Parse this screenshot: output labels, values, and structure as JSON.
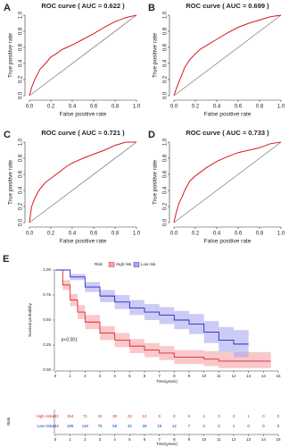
{
  "chart_data": [
    {
      "type": "roc",
      "panel": "A",
      "title": "ROC curve ( AUC = 0.622 )",
      "xlabel": "False positive rate",
      "ylabel": "True positive rate",
      "color": "#d7191c",
      "x": [
        0,
        0.02,
        0.05,
        0.08,
        0.1,
        0.15,
        0.2,
        0.25,
        0.3,
        0.35,
        0.4,
        0.5,
        0.6,
        0.7,
        0.8,
        0.9,
        1
      ],
      "values": [
        0,
        0.1,
        0.2,
        0.28,
        0.33,
        0.4,
        0.48,
        0.52,
        0.57,
        0.6,
        0.63,
        0.7,
        0.77,
        0.85,
        0.92,
        0.97,
        1
      ],
      "xlim": [
        0,
        1
      ],
      "ylim": [
        0,
        1
      ],
      "xticks": [
        {
          "value": 0,
          "label": "0.0"
        },
        {
          "value": 0.2,
          "label": "0.2"
        },
        {
          "value": 0.4,
          "label": "0.4"
        },
        {
          "value": 0.6,
          "label": "0.6"
        },
        {
          "value": 0.8,
          "label": "0.8"
        },
        {
          "value": 1,
          "label": "1.0"
        }
      ],
      "yticks": [
        {
          "value": 0,
          "label": "0.0"
        },
        {
          "value": 0.2,
          "label": "0.2"
        },
        {
          "value": 0.4,
          "label": "0.4"
        },
        {
          "value": 0.6,
          "label": "0.6"
        },
        {
          "value": 0.8,
          "label": "0.8"
        },
        {
          "value": 1,
          "label": "1.0"
        }
      ]
    },
    {
      "type": "roc",
      "panel": "B",
      "title": "ROC curve ( AUC = 0.699 )",
      "xlabel": "False positive rate",
      "ylabel": "True positive rate",
      "color": "#d7191c",
      "x": [
        0,
        0.02,
        0.05,
        0.08,
        0.1,
        0.15,
        0.2,
        0.25,
        0.3,
        0.35,
        0.4,
        0.5,
        0.6,
        0.7,
        0.8,
        0.9,
        1
      ],
      "values": [
        0,
        0.08,
        0.18,
        0.28,
        0.35,
        0.45,
        0.52,
        0.58,
        0.62,
        0.66,
        0.7,
        0.78,
        0.85,
        0.9,
        0.94,
        0.98,
        1
      ],
      "xlim": [
        0,
        1
      ],
      "ylim": [
        0,
        1
      ],
      "xticks": [
        {
          "value": 0,
          "label": "0.0"
        },
        {
          "value": 0.2,
          "label": "0.2"
        },
        {
          "value": 0.4,
          "label": "0.4"
        },
        {
          "value": 0.6,
          "label": "0.6"
        },
        {
          "value": 0.8,
          "label": "0.8"
        },
        {
          "value": 1,
          "label": "1.0"
        }
      ],
      "yticks": [
        {
          "value": 0,
          "label": "0.0"
        },
        {
          "value": 0.2,
          "label": "0.2"
        },
        {
          "value": 0.4,
          "label": "0.4"
        },
        {
          "value": 0.6,
          "label": "0.6"
        },
        {
          "value": 0.8,
          "label": "0.8"
        },
        {
          "value": 1,
          "label": "1.0"
        }
      ]
    },
    {
      "type": "roc",
      "panel": "C",
      "title": "ROC curve ( AUC = 0.721 )",
      "xlabel": "False positive rate",
      "ylabel": "True positive rate",
      "color": "#d7191c",
      "x": [
        0,
        0.02,
        0.05,
        0.08,
        0.1,
        0.15,
        0.2,
        0.25,
        0.3,
        0.35,
        0.4,
        0.5,
        0.6,
        0.7,
        0.8,
        0.9,
        1
      ],
      "values": [
        0,
        0.2,
        0.3,
        0.38,
        0.42,
        0.5,
        0.55,
        0.6,
        0.65,
        0.7,
        0.74,
        0.8,
        0.85,
        0.9,
        0.96,
        1,
        1
      ],
      "xlim": [
        0,
        1
      ],
      "ylim": [
        0,
        1
      ],
      "xticks": [
        {
          "value": 0,
          "label": "0.0"
        },
        {
          "value": 0.2,
          "label": "0.2"
        },
        {
          "value": 0.4,
          "label": "0.4"
        },
        {
          "value": 0.6,
          "label": "0.6"
        },
        {
          "value": 0.8,
          "label": "0.8"
        },
        {
          "value": 1,
          "label": "1.0"
        }
      ],
      "yticks": [
        {
          "value": 0,
          "label": "0.0"
        },
        {
          "value": 0.2,
          "label": "0.2"
        },
        {
          "value": 0.4,
          "label": "0.4"
        },
        {
          "value": 0.6,
          "label": "0.6"
        },
        {
          "value": 0.8,
          "label": "0.8"
        },
        {
          "value": 1,
          "label": "1.0"
        }
      ]
    },
    {
      "type": "roc",
      "panel": "D",
      "title": "ROC curve ( AUC = 0.733 )",
      "xlabel": "False positive rate",
      "ylabel": "True positive rate",
      "color": "#d7191c",
      "x": [
        0,
        0.02,
        0.05,
        0.08,
        0.1,
        0.15,
        0.2,
        0.25,
        0.3,
        0.35,
        0.4,
        0.5,
        0.6,
        0.7,
        0.8,
        0.9,
        1
      ],
      "values": [
        0,
        0.12,
        0.25,
        0.33,
        0.4,
        0.52,
        0.58,
        0.63,
        0.68,
        0.72,
        0.76,
        0.82,
        0.87,
        0.9,
        0.93,
        0.98,
        1
      ],
      "xlim": [
        0,
        1
      ],
      "ylim": [
        0,
        1
      ],
      "xticks": [
        {
          "value": 0,
          "label": "0.0"
        },
        {
          "value": 0.2,
          "label": "0.2"
        },
        {
          "value": 0.4,
          "label": "0.4"
        },
        {
          "value": 0.6,
          "label": "0.6"
        },
        {
          "value": 0.8,
          "label": "0.8"
        },
        {
          "value": 1,
          "label": "1.0"
        }
      ],
      "yticks": [
        {
          "value": 0,
          "label": "0.0"
        },
        {
          "value": 0.2,
          "label": "0.2"
        },
        {
          "value": 0.4,
          "label": "0.4"
        },
        {
          "value": 0.6,
          "label": "0.6"
        },
        {
          "value": 0.8,
          "label": "0.8"
        },
        {
          "value": 1,
          "label": "1.0"
        }
      ]
    },
    {
      "type": "km",
      "panel": "E",
      "legend_title": "Risk",
      "ylabel": "Survival probability",
      "xlabel": "Time(years)",
      "annotation": "p<0.001",
      "xlim": [
        0,
        15
      ],
      "ylim": [
        0,
        1
      ],
      "xticks": [
        0,
        1,
        2,
        3,
        4,
        5,
        6,
        7,
        8,
        9,
        10,
        11,
        12,
        13,
        14,
        15
      ],
      "yticks": [
        {
          "value": 0,
          "label": "0.00"
        },
        {
          "value": 0.25,
          "label": "0.25"
        },
        {
          "value": 0.5,
          "label": "0.50"
        },
        {
          "value": 0.75,
          "label": "0.75"
        },
        {
          "value": 1,
          "label": "1.00"
        }
      ],
      "series": [
        {
          "name": "High risk",
          "color": "#e4262c",
          "band_color": "#f4a3a6",
          "x": [
            0,
            0.5,
            1,
            1.5,
            2,
            3,
            4,
            5,
            6,
            7,
            8,
            10,
            11,
            14.5
          ],
          "values": [
            1,
            0.85,
            0.7,
            0.58,
            0.48,
            0.37,
            0.3,
            0.24,
            0.2,
            0.17,
            0.13,
            0.11,
            0.09,
            0.09
          ],
          "lower": [
            1,
            0.8,
            0.64,
            0.51,
            0.41,
            0.3,
            0.23,
            0.17,
            0.13,
            0.1,
            0.06,
            0.04,
            0.02,
            0.02
          ],
          "upper": [
            1,
            0.9,
            0.76,
            0.65,
            0.55,
            0.44,
            0.37,
            0.31,
            0.27,
            0.24,
            0.2,
            0.19,
            0.18,
            0.22
          ]
        },
        {
          "name": "Low risk",
          "color": "#2b2bbf",
          "band_color": "#a9a9ee",
          "x": [
            0,
            1,
            2,
            3,
            4,
            5,
            6,
            7,
            8,
            9,
            10,
            11,
            12,
            13
          ],
          "values": [
            1,
            0.93,
            0.83,
            0.74,
            0.68,
            0.62,
            0.58,
            0.55,
            0.5,
            0.46,
            0.38,
            0.3,
            0.26,
            0.26
          ],
          "lower": [
            1,
            0.9,
            0.78,
            0.68,
            0.61,
            0.55,
            0.5,
            0.46,
            0.41,
            0.36,
            0.27,
            0.18,
            0.13,
            0.13
          ],
          "upper": [
            1,
            0.96,
            0.88,
            0.8,
            0.75,
            0.7,
            0.66,
            0.63,
            0.59,
            0.56,
            0.49,
            0.43,
            0.4,
            0.4
          ]
        }
      ]
    },
    {
      "type": "risk-table",
      "ylabel": "Risk",
      "xlabel": "Time(years)",
      "xlim": [
        0,
        15
      ],
      "xticks": [
        0,
        1,
        2,
        3,
        4,
        5,
        6,
        7,
        8,
        9,
        10,
        11,
        12,
        13,
        14,
        15
      ],
      "x": [
        0,
        1,
        2,
        3,
        4,
        5,
        6,
        7,
        8,
        9,
        10,
        11,
        12,
        13,
        14,
        15
      ],
      "series": [
        {
          "name": "High risk",
          "color": "#e4262c",
          "values": [
            233,
            154,
            71,
            42,
            30,
            22,
            12,
            9,
            8,
            6,
            4,
            3,
            2,
            1,
            0,
            0
          ]
        },
        {
          "name": "Low risk",
          "color": "#2b2bbf",
          "values": [
            234,
            185,
            119,
            75,
            56,
            42,
            29,
            19,
            12,
            7,
            4,
            2,
            1,
            0,
            0,
            0
          ]
        }
      ]
    }
  ]
}
